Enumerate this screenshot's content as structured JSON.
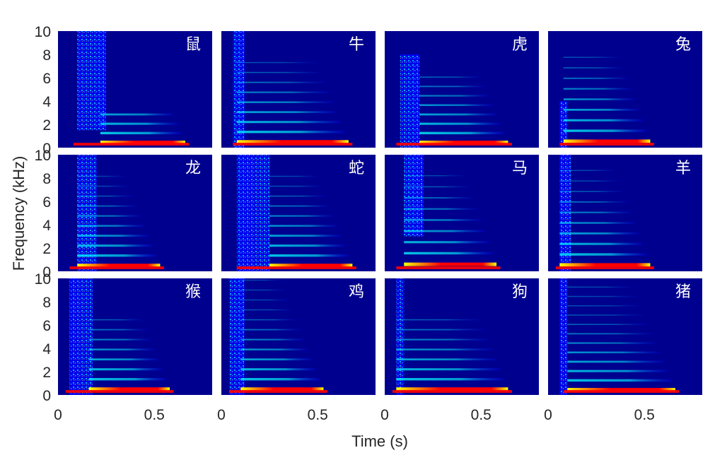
{
  "chart_data": {
    "type": "heatmap",
    "title": "",
    "xlabel": "Time (s)",
    "ylabel": "Frequency (kHz)",
    "xlim": [
      0,
      0.8
    ],
    "ylim": [
      0,
      10
    ],
    "x_ticks": [
      0,
      0.5
    ],
    "x_tick_labels": [
      "0",
      "0.5"
    ],
    "y_ticks": [
      0,
      2,
      4,
      6,
      8,
      10
    ],
    "y_tick_labels": [
      "0",
      "2",
      "4",
      "6",
      "8",
      "10"
    ],
    "colormap": "jet",
    "colors": {
      "background": "#00008f",
      "low": "#0000ff",
      "mid": "#00ffff",
      "midhigh": "#ffff00",
      "high": "#ff0000"
    },
    "panels": [
      {
        "label": "鼠",
        "onset": 0.08,
        "end": 0.68,
        "f0": 0.45,
        "harmonics": 4,
        "noise": [
          0.1,
          0.25,
          1.5,
          10
        ],
        "voiced_start": 0.22
      },
      {
        "label": "牛",
        "onset": 0.06,
        "end": 0.68,
        "f0": 0.5,
        "harmonics": 9,
        "noise": [
          0.06,
          0.12,
          0,
          10
        ],
        "voiced_start": 0.08
      },
      {
        "label": "虎",
        "onset": 0.06,
        "end": 0.66,
        "f0": 0.45,
        "harmonics": 8,
        "noise": [
          0.08,
          0.18,
          0,
          8
        ],
        "voiced_start": 0.18
      },
      {
        "label": "兔",
        "onset": 0.06,
        "end": 0.55,
        "f0": 0.55,
        "harmonics": 9,
        "noise": [
          0.06,
          0.1,
          0,
          4
        ],
        "voiced_start": 0.08
      },
      {
        "label": "龙",
        "onset": 0.06,
        "end": 0.55,
        "f0": 0.5,
        "harmonics": 10,
        "noise": [
          0.1,
          0.2,
          0,
          10
        ],
        "voiced_start": 0.1
      },
      {
        "label": "蛇",
        "onset": 0.08,
        "end": 0.7,
        "f0": 0.5,
        "harmonics": 10,
        "noise": [
          0.08,
          0.25,
          0,
          10
        ],
        "voiced_start": 0.25
      },
      {
        "label": "马",
        "onset": 0.06,
        "end": 0.6,
        "f0": 0.6,
        "harmonics": 9,
        "noise": [
          0.1,
          0.2,
          3,
          10
        ],
        "voiced_start": 0.1
      },
      {
        "label": "羊",
        "onset": 0.04,
        "end": 0.55,
        "f0": 0.55,
        "harmonics": 10,
        "noise": [
          0.06,
          0.12,
          0,
          10
        ],
        "voiced_start": 0.06
      },
      {
        "label": "猴",
        "onset": 0.04,
        "end": 0.6,
        "f0": 0.5,
        "harmonics": 8,
        "noise": [
          0.06,
          0.18,
          0,
          10
        ],
        "voiced_start": 0.16
      },
      {
        "label": "鸡",
        "onset": 0.04,
        "end": 0.55,
        "f0": 0.5,
        "harmonics": 14,
        "noise": [
          0.04,
          0.12,
          0,
          10
        ],
        "voiced_start": 0.1
      },
      {
        "label": "狗",
        "onset": 0.04,
        "end": 0.66,
        "f0": 0.5,
        "harmonics": 8,
        "noise": [
          0.06,
          0.1,
          0,
          10
        ],
        "voiced_start": 0.06
      },
      {
        "label": "猪",
        "onset": 0.08,
        "end": 0.68,
        "f0": 0.45,
        "harmonics": 14,
        "noise": [
          0.06,
          0.1,
          0,
          10
        ],
        "voiced_start": 0.1
      }
    ]
  }
}
